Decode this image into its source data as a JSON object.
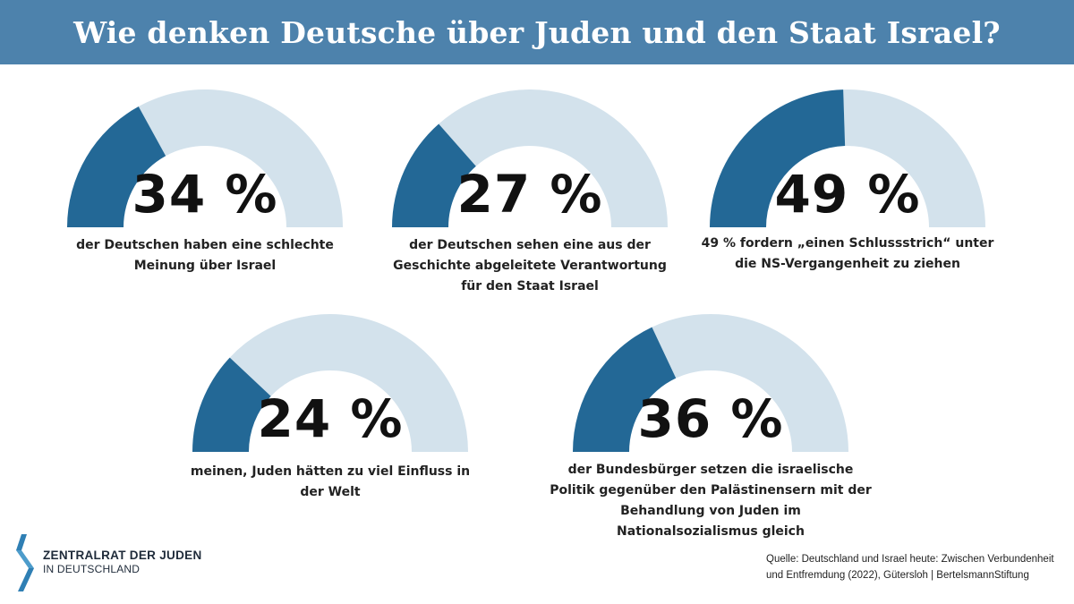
{
  "header": {
    "title": "Wie denken Deutsche über Juden und den Staat Israel?"
  },
  "colors": {
    "header": "#4d82ac",
    "fill": "#236896",
    "track": "#d3e2ec"
  },
  "chart_data": [
    {
      "type": "gauge",
      "value": 34,
      "value_label": "34 %",
      "caption": "der Deutschen haben eine schlechte Meinung über Israel"
    },
    {
      "type": "gauge",
      "value": 27,
      "value_label": "27 %",
      "caption": "der Deutschen sehen eine aus der Geschichte abgeleitete Verantwortung für den Staat Israel"
    },
    {
      "type": "gauge",
      "value": 49,
      "value_label": "49 %",
      "caption": "49 % fordern „einen Schlussstrich“ unter die NS-Vergangenheit zu ziehen"
    },
    {
      "type": "gauge",
      "value": 24,
      "value_label": "24 %",
      "caption": "meinen, Juden hätten zu viel Einfluss in der Welt"
    },
    {
      "type": "gauge",
      "value": 36,
      "value_label": "36 %",
      "caption": "der Bundesbürger setzen die israelische Politik gegenüber den Palästinensern mit der Behandlung von Juden im Nationalsozialismus gleich"
    }
  ],
  "footer": {
    "logo_line1": "ZENTRALRAT DER JUDEN",
    "logo_line2": "IN DEUTSCHLAND",
    "source": "Quelle: Deutschland und Israel heute: Zwischen Verbundenheit und Entfremdung (2022), Gütersloh | BertelsmannStiftung"
  }
}
